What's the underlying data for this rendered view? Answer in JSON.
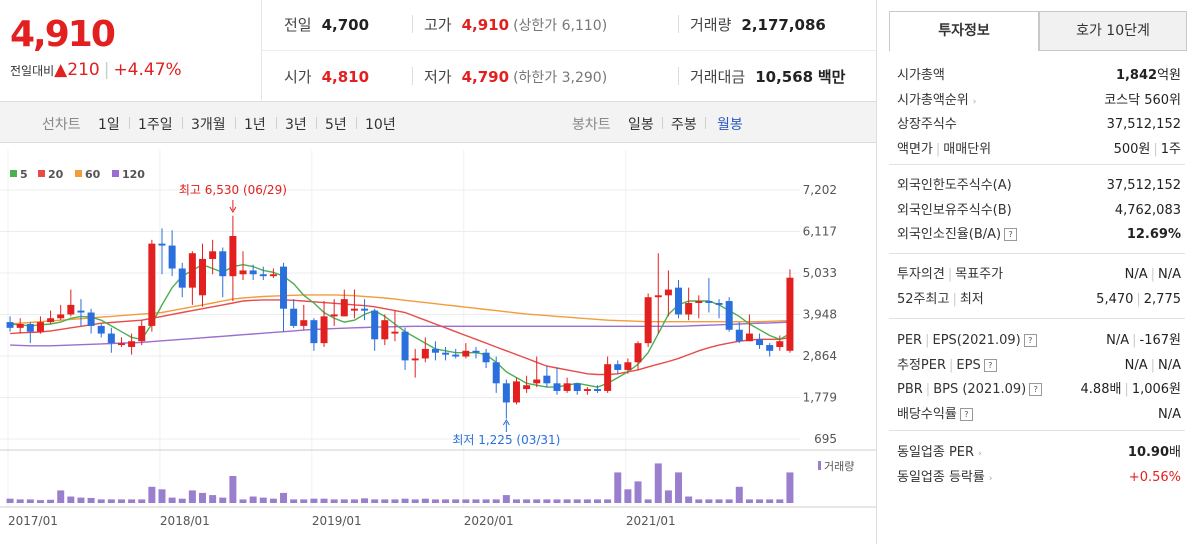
{
  "price": {
    "current": "4,910",
    "change_label": "전일대비",
    "change_arrow": "▲",
    "change_value": "210",
    "change_sep": "|",
    "change_pct": "+4.47%"
  },
  "stats": {
    "prev_label": "전일",
    "prev_value": "4,700",
    "high_label": "고가",
    "high_value": "4,910",
    "upper_limit": "(상한가 6,110)",
    "volume_label": "거래량",
    "volume_value": "2,177,086",
    "open_label": "시가",
    "open_value": "4,810",
    "low_label": "저가",
    "low_value": "4,790",
    "lower_limit": "(하한가 3,290)",
    "amount_label": "거래대금",
    "amount_value": "10,568",
    "amount_unit": "백만"
  },
  "toolbar": {
    "line_chart_label": "선차트",
    "line_periods": [
      "1일",
      "1주일",
      "3개월",
      "1년",
      "3년",
      "5년",
      "10년"
    ],
    "candle_label": "봉차트",
    "candle_periods": [
      "일봉",
      "주봉",
      "월봉"
    ],
    "active_candle": "월봉"
  },
  "chart_data": {
    "type": "candlestick",
    "legend": [
      {
        "name": "5",
        "color": "#4caf50"
      },
      {
        "name": "20",
        "color": "#e84a4a"
      },
      {
        "name": "60",
        "color": "#f39c3a"
      },
      {
        "name": "120",
        "color": "#9b6fd0"
      }
    ],
    "y_ticks": [
      "7,202",
      "6,117",
      "5,033",
      "3,948",
      "2,864",
      "1,779",
      "695"
    ],
    "x_ticks": [
      "2017/01",
      "2018/01",
      "2019/01",
      "2020/01",
      "2021/01"
    ],
    "high_annotation": "최고 6,530 (06/29)",
    "low_annotation": "최저 1,225 (03/31)",
    "volume_label": "거래량",
    "up_color": "#e22020",
    "down_color": "#2a6fdb",
    "candles": [
      {
        "o": 3750,
        "c": 3600,
        "h": 3900,
        "l": 3500
      },
      {
        "o": 3600,
        "c": 3700,
        "h": 3850,
        "l": 3450
      },
      {
        "o": 3700,
        "c": 3500,
        "h": 3750,
        "l": 3200
      },
      {
        "o": 3500,
        "c": 3750,
        "h": 3900,
        "l": 3450
      },
      {
        "o": 3750,
        "c": 3850,
        "h": 4050,
        "l": 3700
      },
      {
        "o": 3850,
        "c": 3950,
        "h": 4200,
        "l": 3800
      },
      {
        "o": 3950,
        "c": 4200,
        "h": 4600,
        "l": 3900
      },
      {
        "o": 4050,
        "c": 4000,
        "h": 4350,
        "l": 3650
      },
      {
        "o": 4000,
        "c": 3650,
        "h": 4100,
        "l": 3450
      },
      {
        "o": 3650,
        "c": 3450,
        "h": 3700,
        "l": 3350
      },
      {
        "o": 3450,
        "c": 3200,
        "h": 3600,
        "l": 2950
      },
      {
        "o": 3150,
        "c": 3200,
        "h": 3350,
        "l": 3100
      },
      {
        "o": 3100,
        "c": 3250,
        "h": 3450,
        "l": 2900
      },
      {
        "o": 3250,
        "c": 3650,
        "h": 3800,
        "l": 3150
      },
      {
        "o": 3650,
        "c": 5800,
        "h": 5900,
        "l": 3500
      },
      {
        "o": 5800,
        "c": 5750,
        "h": 6200,
        "l": 5000
      },
      {
        "o": 5750,
        "c": 5150,
        "h": 6150,
        "l": 4950
      },
      {
        "o": 5150,
        "c": 4650,
        "h": 5300,
        "l": 4400
      },
      {
        "o": 4650,
        "c": 5550,
        "h": 5600,
        "l": 4200
      },
      {
        "o": 4450,
        "c": 5400,
        "h": 5800,
        "l": 4150
      },
      {
        "o": 5400,
        "c": 5600,
        "h": 5900,
        "l": 5000
      },
      {
        "o": 5600,
        "c": 4950,
        "h": 5700,
        "l": 4400
      },
      {
        "o": 4950,
        "c": 6000,
        "h": 6530,
        "l": 4300
      },
      {
        "o": 5000,
        "c": 5100,
        "h": 5600,
        "l": 4850
      },
      {
        "o": 5100,
        "c": 5000,
        "h": 5250,
        "l": 4850
      },
      {
        "o": 5000,
        "c": 4950,
        "h": 5200,
        "l": 4850
      },
      {
        "o": 4950,
        "c": 5000,
        "h": 5150,
        "l": 4900
      },
      {
        "o": 5200,
        "c": 4100,
        "h": 5300,
        "l": 3500
      },
      {
        "o": 4100,
        "c": 3650,
        "h": 4350,
        "l": 3600
      },
      {
        "o": 3650,
        "c": 3800,
        "h": 4200,
        "l": 3550
      },
      {
        "o": 3800,
        "c": 3200,
        "h": 3850,
        "l": 3000
      },
      {
        "o": 3200,
        "c": 3900,
        "h": 4300,
        "l": 3100
      },
      {
        "o": 3900,
        "c": 3950,
        "h": 4350,
        "l": 3650
      },
      {
        "o": 3900,
        "c": 4350,
        "h": 4600,
        "l": 3900
      },
      {
        "o": 4050,
        "c": 4100,
        "h": 4600,
        "l": 3850
      },
      {
        "o": 4100,
        "c": 4050,
        "h": 4350,
        "l": 3800
      },
      {
        "o": 4050,
        "c": 3300,
        "h": 4100,
        "l": 3000
      },
      {
        "o": 3300,
        "c": 3800,
        "h": 3950,
        "l": 3150
      },
      {
        "o": 3450,
        "c": 3500,
        "h": 4050,
        "l": 3250
      },
      {
        "o": 3500,
        "c": 2750,
        "h": 3600,
        "l": 2500
      },
      {
        "o": 2750,
        "c": 2800,
        "h": 3050,
        "l": 2300
      },
      {
        "o": 2800,
        "c": 3050,
        "h": 3350,
        "l": 2700
      },
      {
        "o": 3050,
        "c": 2950,
        "h": 3250,
        "l": 2750
      },
      {
        "o": 2950,
        "c": 2900,
        "h": 3100,
        "l": 2750
      },
      {
        "o": 2900,
        "c": 2850,
        "h": 3050,
        "l": 2800
      },
      {
        "o": 2850,
        "c": 3000,
        "h": 3200,
        "l": 2800
      },
      {
        "o": 3000,
        "c": 2950,
        "h": 3100,
        "l": 2800
      },
      {
        "o": 2950,
        "c": 2700,
        "h": 3050,
        "l": 2550
      },
      {
        "o": 2700,
        "c": 2150,
        "h": 2850,
        "l": 1900
      },
      {
        "o": 2150,
        "c": 1650,
        "h": 2250,
        "l": 1225
      },
      {
        "o": 1650,
        "c": 2200,
        "h": 2300,
        "l": 1600
      },
      {
        "o": 2000,
        "c": 2100,
        "h": 2350,
        "l": 1900
      },
      {
        "o": 2150,
        "c": 2250,
        "h": 2850,
        "l": 2050
      },
      {
        "o": 2350,
        "c": 2150,
        "h": 2600,
        "l": 2050
      },
      {
        "o": 2150,
        "c": 1950,
        "h": 2550,
        "l": 1850
      },
      {
        "o": 1950,
        "c": 2150,
        "h": 2300,
        "l": 1900
      },
      {
        "o": 2150,
        "c": 1950,
        "h": 2150,
        "l": 1850
      },
      {
        "o": 1950,
        "c": 2000,
        "h": 2050,
        "l": 1850
      },
      {
        "o": 2000,
        "c": 1950,
        "h": 2100,
        "l": 1900
      },
      {
        "o": 1950,
        "c": 2650,
        "h": 2850,
        "l": 1900
      },
      {
        "o": 2650,
        "c": 2500,
        "h": 2750,
        "l": 2400
      },
      {
        "o": 2500,
        "c": 2700,
        "h": 2800,
        "l": 2400
      },
      {
        "o": 2700,
        "c": 3200,
        "h": 3250,
        "l": 2500
      },
      {
        "o": 3200,
        "c": 4400,
        "h": 4500,
        "l": 3100
      },
      {
        "o": 4400,
        "c": 4450,
        "h": 5550,
        "l": 3450
      },
      {
        "o": 4450,
        "c": 4600,
        "h": 5100,
        "l": 3900
      },
      {
        "o": 4650,
        "c": 3950,
        "h": 4850,
        "l": 3850
      },
      {
        "o": 3950,
        "c": 4250,
        "h": 4650,
        "l": 3800
      },
      {
        "o": 4250,
        "c": 4300,
        "h": 4450,
        "l": 3850
      },
      {
        "o": 4300,
        "c": 4250,
        "h": 4900,
        "l": 4000
      },
      {
        "o": 4250,
        "c": 4200,
        "h": 4350,
        "l": 3850
      },
      {
        "o": 4300,
        "c": 3550,
        "h": 4400,
        "l": 3500
      },
      {
        "o": 3550,
        "c": 3250,
        "h": 3750,
        "l": 3200
      },
      {
        "o": 3250,
        "c": 3450,
        "h": 3950,
        "l": 3250
      },
      {
        "o": 3300,
        "c": 3150,
        "h": 3450,
        "l": 3050
      },
      {
        "o": 3150,
        "c": 3000,
        "h": 3200,
        "l": 2850
      },
      {
        "o": 3100,
        "c": 3250,
        "h": 3400,
        "l": 3000
      },
      {
        "o": 3000,
        "c": 4910,
        "h": 5130,
        "l": 2950
      }
    ],
    "ma5": [
      3700,
      3680,
      3650,
      3680,
      3700,
      3750,
      3850,
      3900,
      3880,
      3800,
      3650,
      3500,
      3350,
      3300,
      3700,
      4200,
      4650,
      4950,
      5100,
      5250,
      5150,
      5050,
      5200,
      5250,
      5200,
      5100,
      5050,
      4950,
      4750,
      4450,
      4250,
      4000,
      3850,
      3750,
      3800,
      3950,
      4050,
      3900,
      3700,
      3500,
      3350,
      3200,
      3050,
      3000,
      2950,
      2950,
      2950,
      2900,
      2700,
      2450,
      2300,
      2150,
      2100,
      2050,
      2050,
      2100,
      2150,
      2100,
      2050,
      2150,
      2300,
      2450,
      2650,
      2950,
      3450,
      3950,
      4200,
      4300,
      4300,
      4300,
      4200,
      4050,
      3900,
      3700,
      3550,
      3400,
      3300,
      3450
    ],
    "ma20": [
      3450,
      3470,
      3480,
      3490,
      3520,
      3560,
      3600,
      3640,
      3680,
      3720,
      3740,
      3760,
      3780,
      3800,
      3850,
      3900,
      3950,
      4000,
      4050,
      4100,
      4150,
      4200,
      4250,
      4300,
      4320,
      4330,
      4330,
      4330,
      4320,
      4300,
      4280,
      4260,
      4240,
      4220,
      4200,
      4180,
      4150,
      4100,
      4050,
      4000,
      3900,
      3800,
      3700,
      3600,
      3500,
      3400,
      3300,
      3200,
      3100,
      3000,
      2900,
      2800,
      2700,
      2600,
      2550,
      2500,
      2450,
      2400,
      2380,
      2380,
      2400,
      2450,
      2500,
      2580,
      2650,
      2720,
      2800,
      2900,
      3000,
      3080,
      3150,
      3200,
      3250,
      3280,
      3300,
      3300,
      3300,
      3350
    ],
    "ma60": [
      3700,
      3720,
      3740,
      3760,
      3780,
      3800,
      3820,
      3840,
      3860,
      3880,
      3900,
      3920,
      3940,
      3960,
      3980,
      4000,
      4050,
      4100,
      4150,
      4200,
      4250,
      4300,
      4350,
      4380,
      4400,
      4420,
      4430,
      4440,
      4450,
      4460,
      4460,
      4460,
      4460,
      4450,
      4440,
      4420,
      4400,
      4380,
      4350,
      4320,
      4290,
      4260,
      4230,
      4200,
      4170,
      4140,
      4110,
      4080,
      4050,
      4020,
      3990,
      3960,
      3940,
      3920,
      3900,
      3880,
      3860,
      3840,
      3820,
      3800,
      3790,
      3780,
      3770,
      3760,
      3760,
      3760,
      3760,
      3760,
      3760,
      3760,
      3760,
      3760,
      3760,
      3760,
      3760,
      3770,
      3780,
      3790
    ],
    "ma120": [
      3150,
      3140,
      3130,
      3130,
      3130,
      3140,
      3150,
      3160,
      3170,
      3180,
      3190,
      3200,
      3210,
      3220,
      3240,
      3260,
      3280,
      3300,
      3320,
      3340,
      3360,
      3380,
      3400,
      3420,
      3440,
      3460,
      3480,
      3500,
      3520,
      3540,
      3560,
      3570,
      3580,
      3590,
      3600,
      3610,
      3620,
      3625,
      3630,
      3635,
      3640,
      3640,
      3640,
      3640,
      3640,
      3640,
      3640,
      3640,
      3640,
      3640,
      3640,
      3640,
      3640,
      3640,
      3640,
      3640,
      3640,
      3640,
      3640,
      3640,
      3640,
      3640,
      3640,
      3640,
      3640,
      3640,
      3640,
      3650,
      3660,
      3670,
      3680,
      3690,
      3700,
      3710,
      3720,
      3730,
      3740,
      3750
    ],
    "volume": [
      1.2,
      1.0,
      1.0,
      0.8,
      0.9,
      3.5,
      1.8,
      1.5,
      1.4,
      1.0,
      1.0,
      1.0,
      1.0,
      1.0,
      4.5,
      3.8,
      1.5,
      1.2,
      3.5,
      2.8,
      2.2,
      1.5,
      7.5,
      1.0,
      1.8,
      1.5,
      1.2,
      2.8,
      1.0,
      1.0,
      1.2,
      1.2,
      1.0,
      1.0,
      1.0,
      1.3,
      1.0,
      1.0,
      1.0,
      1.2,
      1.0,
      1.2,
      1.0,
      1.0,
      1.0,
      1.0,
      1.0,
      1.0,
      1.0,
      2.2,
      1.0,
      1.0,
      1.0,
      1.0,
      1.0,
      1.0,
      1.0,
      1.0,
      1.0,
      1.0,
      8.5,
      3.8,
      6.0,
      1.0,
      11.0,
      3.5,
      8.5,
      1.8,
      1.0,
      1.0,
      1.0,
      1.0,
      4.5,
      1.0,
      1.0,
      1.0,
      1.0,
      8.5
    ]
  },
  "right": {
    "tabs": [
      "투자정보",
      "호가 10단계"
    ],
    "group1": [
      {
        "k": "시가총액",
        "v": "1,842",
        "unit": "억원"
      },
      {
        "k": "시가총액순위",
        "v": "코스닥 560위",
        "arrow": "›"
      },
      {
        "k": "상장주식수",
        "v": "37,512,152"
      },
      {
        "k": "액면가",
        "k2": "매매단위",
        "v": "500원",
        "v2": "1주"
      }
    ],
    "group2": [
      {
        "k": "외국인한도주식수(A)",
        "v": "37,512,152"
      },
      {
        "k": "외국인보유주식수(B)",
        "v": "4,762,083"
      },
      {
        "k": "외국인소진율(B/A)",
        "v": "12.69%",
        "q": "?"
      }
    ],
    "group3": [
      {
        "k": "투자의견",
        "k2": "목표주가",
        "v": "N/A",
        "v2": "N/A"
      },
      {
        "k": "52주최고",
        "k2": "최저",
        "v": "5,470",
        "v2": "2,775"
      }
    ],
    "group4": [
      {
        "k": "PER",
        "k2": "EPS(2021.09)",
        "v": "N/A",
        "v2": "-167원",
        "q": "?"
      },
      {
        "k": "추정PER",
        "k2": "EPS",
        "v": "N/A",
        "v2": "N/A",
        "q": "?"
      },
      {
        "k": "PBR",
        "k2": "BPS (2021.09)",
        "v": "4.88배",
        "v2": "1,006원",
        "q": "?"
      },
      {
        "k": "배당수익률",
        "v": "N/A",
        "q": "?"
      }
    ],
    "group5": [
      {
        "k": "동일업종 PER",
        "v": "10.90",
        "unit": "배",
        "arrow": "›"
      },
      {
        "k": "동일업종 등락률",
        "v": "+0.56%",
        "arrow": "›"
      }
    ]
  }
}
